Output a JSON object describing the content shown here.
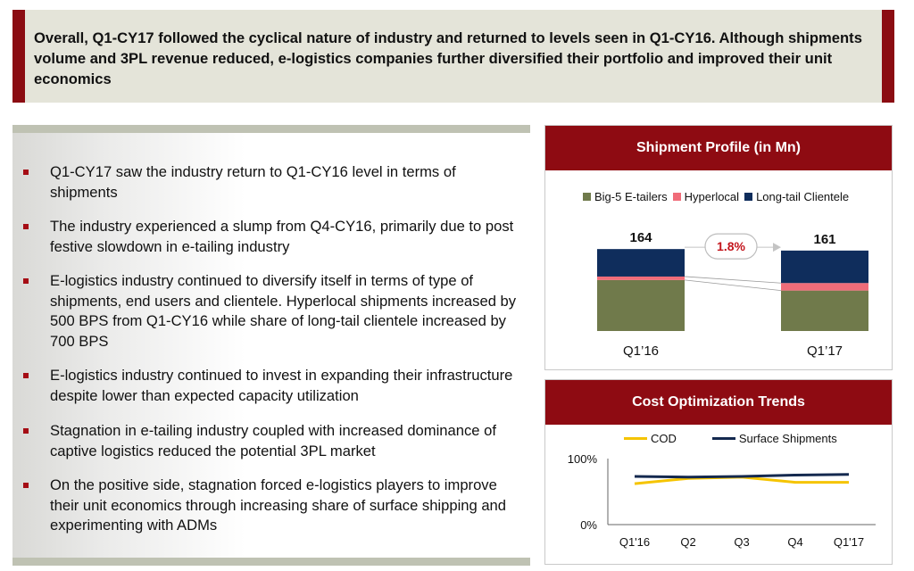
{
  "header": {
    "headline": "Overall, Q1-CY17 followed the cyclical nature of industry and returned to levels seen in Q1-CY16. Although shipments volume and 3PL revenue reduced, e-logistics companies further diversified their portfolio and improved their unit economics"
  },
  "bullets": [
    {
      "text": "Q1-CY17 saw the industry return to Q1-CY16 level in terms of shipments"
    },
    {
      "text": "The industry experienced a slump from Q4-CY16, primarily due to post festive slowdown in e-tailing industry"
    },
    {
      "text": "E-logistics industry continued to diversify itself in terms of type of shipments, end users and clientele. Hyperlocal shipments increased by 500 BPS from Q1-CY16 while share of long-tail clientele increased by 700 BPS"
    },
    {
      "text": "E-logistics industry continued to invest in expanding their infrastructure despite lower than expected capacity utilization"
    },
    {
      "text": "Stagnation in e-tailing industry coupled with increased dominance of captive logistics reduced the potential 3PL market"
    },
    {
      "text": "On the positive side, stagnation forced e-logistics players to improve their unit economics through increasing share of surface shipping and experimenting with ADMs"
    }
  ],
  "colors": {
    "brand_red": "#8e0b12",
    "big5": "#707a4b",
    "hyperlocal": "#f06c79",
    "longtail": "#0f2d5c",
    "cod": "#f5c400",
    "surface": "#14294f"
  },
  "chart_data": [
    {
      "type": "bar",
      "stacked": true,
      "title": "Shipment Profile (in Mn)",
      "categories": [
        "Q1’16",
        "Q1’17"
      ],
      "series": [
        {
          "name": "Big-5 E-tailers",
          "values": [
            102,
            81
          ]
        },
        {
          "name": "Hyperlocal",
          "values": [
            7,
            15
          ]
        },
        {
          "name": "Long-tail Clientele",
          "values": [
            55,
            65
          ]
        }
      ],
      "totals": [
        164,
        161
      ],
      "annotation": "1.8%",
      "legend": "top"
    },
    {
      "type": "line",
      "title": "Cost Optimization Trends",
      "x": [
        "Q1'16",
        "Q2",
        "Q3",
        "Q4",
        "Q1'17"
      ],
      "series": [
        {
          "name": "COD",
          "values": [
            62,
            70,
            72,
            64,
            64
          ]
        },
        {
          "name": "Surface Shipments",
          "values": [
            73,
            72,
            73,
            75,
            76
          ]
        }
      ],
      "y_tick_labels": [
        "100%",
        "0%"
      ],
      "ylim": [
        0,
        100
      ],
      "legend": "top"
    }
  ]
}
